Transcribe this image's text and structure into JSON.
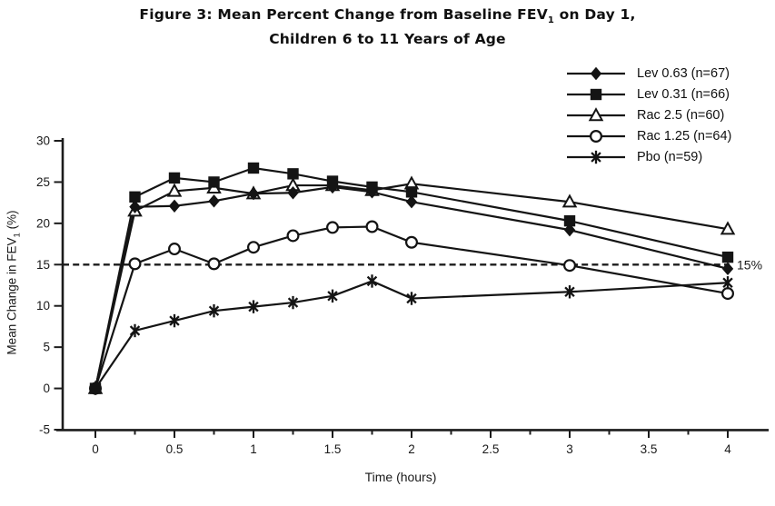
{
  "title": {
    "line1_prefix": "Figure 3: Mean Percent Change from Baseline FEV",
    "line1_sub": "1",
    "line1_suffix": " on Day 1,",
    "line2": "Children 6 to 11 Years of Age"
  },
  "axis": {
    "xlabel": "Time (hours)",
    "ylabel_prefix": "Mean Change in FEV",
    "ylabel_sub": "1",
    "ylabel_suffix": " (%)"
  },
  "chart_data": {
    "type": "line",
    "x": [
      0,
      0.25,
      0.5,
      0.75,
      1,
      1.25,
      1.5,
      1.75,
      2,
      3,
      4
    ],
    "series": [
      {
        "name": "Lev 0.63",
        "label": "Lev 0.63 (n=67)",
        "marker": "diamond-filled",
        "values": [
          0,
          22.0,
          22.1,
          22.7,
          23.6,
          23.7,
          24.4,
          23.8,
          22.6,
          19.2,
          14.5
        ]
      },
      {
        "name": "Lev 0.31",
        "label": "Lev 0.31 (n=66)",
        "marker": "square-filled",
        "values": [
          0,
          23.2,
          25.5,
          25.0,
          26.7,
          26.0,
          25.1,
          24.4,
          23.8,
          20.3,
          15.9
        ]
      },
      {
        "name": "Rac 2.5",
        "label": "Rac 2.5 (n=60)",
        "marker": "triangle-open",
        "values": [
          0,
          21.5,
          23.9,
          24.3,
          23.6,
          24.6,
          24.6,
          24.0,
          24.8,
          22.6,
          19.3
        ]
      },
      {
        "name": "Rac 1.25",
        "label": "Rac 1.25 (n=64)",
        "marker": "circle-open",
        "values": [
          0,
          15.1,
          16.9,
          15.1,
          17.1,
          18.5,
          19.5,
          19.6,
          17.7,
          14.9,
          11.5
        ]
      },
      {
        "name": "Pbo",
        "label": "Pbo (n=59)",
        "marker": "asterisk",
        "values": [
          0,
          7.0,
          8.2,
          9.4,
          9.9,
          10.4,
          11.2,
          13.0,
          10.9,
          11.7,
          12.8
        ]
      }
    ],
    "title": "Figure 3: Mean Percent Change from Baseline FEV1 on Day 1, Children 6 to 11 Years of Age",
    "xlabel": "Time (hours)",
    "ylabel": "Mean Change in FEV1 (%)",
    "xlim": [
      0,
      4
    ],
    "ylim": [
      -5,
      30
    ],
    "x_tick_labels": [
      "0",
      "0.5",
      "1",
      "1.5",
      "2",
      "2.5",
      "3",
      "3.5",
      "4"
    ],
    "x_ticks_major": [
      0,
      0.5,
      1,
      1.5,
      2,
      2.5,
      3,
      3.5,
      4
    ],
    "x_minor_step": 0.25,
    "y_ticks": [
      30,
      25,
      20,
      15,
      10,
      5,
      0,
      -5
    ],
    "reference_line": {
      "y": 15,
      "label": "15%",
      "style": "dashed"
    },
    "legend_position": "top-right",
    "grid": false,
    "line_color": "#141414",
    "background_color": "#ffffff"
  }
}
